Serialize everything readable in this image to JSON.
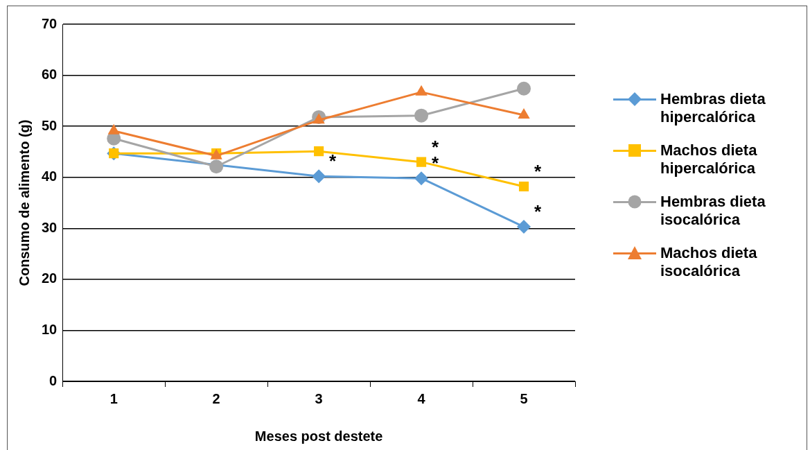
{
  "chart_data": {
    "type": "line",
    "xlabel": "Meses post destete",
    "ylabel": "Consumo de alimento (g)",
    "categories": [
      "1",
      "2",
      "3",
      "4",
      "5"
    ],
    "ylim": [
      0,
      70
    ],
    "yticks": [
      0,
      10,
      20,
      30,
      40,
      50,
      60,
      70
    ],
    "grid": "y",
    "legend": "right",
    "series": [
      {
        "name": "Hembras dieta hipercalórica",
        "color": "#5b9bd5",
        "marker": "diamond",
        "values": [
          44.7,
          null,
          40.2,
          39.8,
          30.3
        ]
      },
      {
        "name": "Machos dieta hipercalórica",
        "color": "#ffc000",
        "marker": "square",
        "values": [
          44.7,
          44.7,
          45.1,
          43.0,
          38.2
        ]
      },
      {
        "name": "Hembras dieta isocalórica",
        "color": "#a5a5a5",
        "marker": "circle",
        "values": [
          47.6,
          42.1,
          51.8,
          52.1,
          57.4
        ]
      },
      {
        "name": "Machos dieta isocalórica",
        "color": "#ed7d31",
        "marker": "triangle",
        "values": [
          49.1,
          44.2,
          51.2,
          56.7,
          52.2
        ]
      }
    ],
    "annotations": [
      {
        "text": "*",
        "x": "3",
        "y": 40.2
      },
      {
        "text": "*",
        "x": "4",
        "y": 43.0
      },
      {
        "text": "*",
        "x": "4",
        "y": 39.8
      },
      {
        "text": "*",
        "x": "5",
        "y": 38.2
      },
      {
        "text": "*",
        "x": "5",
        "y": 30.3
      }
    ]
  }
}
